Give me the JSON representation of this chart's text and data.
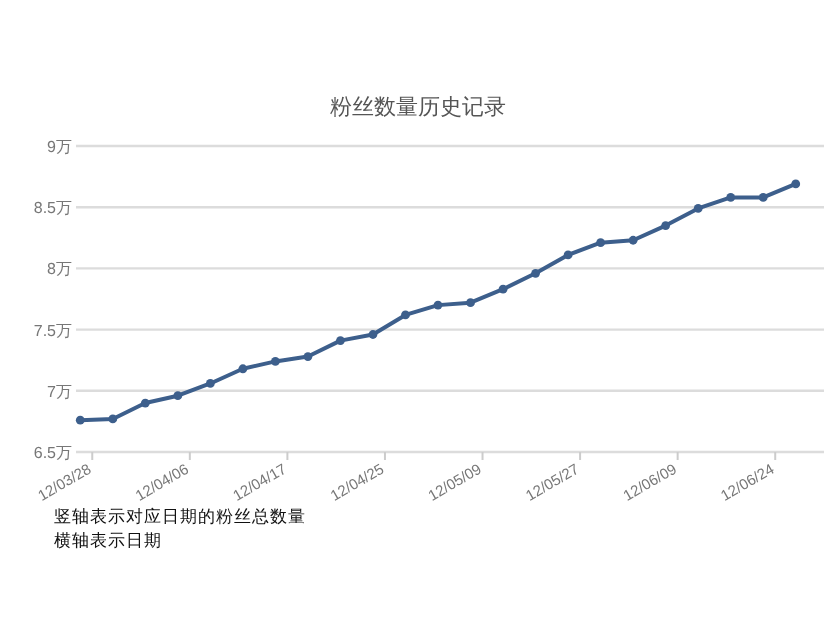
{
  "chart_data": {
    "type": "line",
    "title": "粉丝数量历史记录",
    "categories": [
      "12/03/28",
      null,
      null,
      "12/04/06",
      null,
      null,
      "12/04/17",
      null,
      null,
      "12/04/25",
      null,
      null,
      "12/05/09",
      null,
      null,
      "12/05/27",
      null,
      null,
      "12/06/09",
      null,
      null,
      "12/06/24",
      null
    ],
    "series": [
      {
        "color": "#3d5f8c",
        "values": [
          6.76,
          6.77,
          6.9,
          6.96,
          7.06,
          7.18,
          7.24,
          7.28,
          7.41,
          7.46,
          7.62,
          7.7,
          7.72,
          7.83,
          7.96,
          8.11,
          8.21,
          8.23,
          8.35,
          8.49,
          8.58,
          8.58,
          8.69
        ]
      }
    ],
    "ylim": [
      6.5,
      9
    ],
    "yticks": [
      {
        "value": 6.5,
        "label": "6.5万"
      },
      {
        "value": 7,
        "label": "7万"
      },
      {
        "value": 7.5,
        "label": "7.5万"
      },
      {
        "value": 8,
        "label": "8万"
      },
      {
        "value": 8.5,
        "label": "8.5万"
      },
      {
        "value": 9,
        "label": "9万"
      }
    ],
    "grid": "y",
    "marker": "circle",
    "line_style": "solid",
    "annotations": [
      "竖轴表示对应日期的粉丝总数量",
      "横轴表示日期"
    ]
  }
}
